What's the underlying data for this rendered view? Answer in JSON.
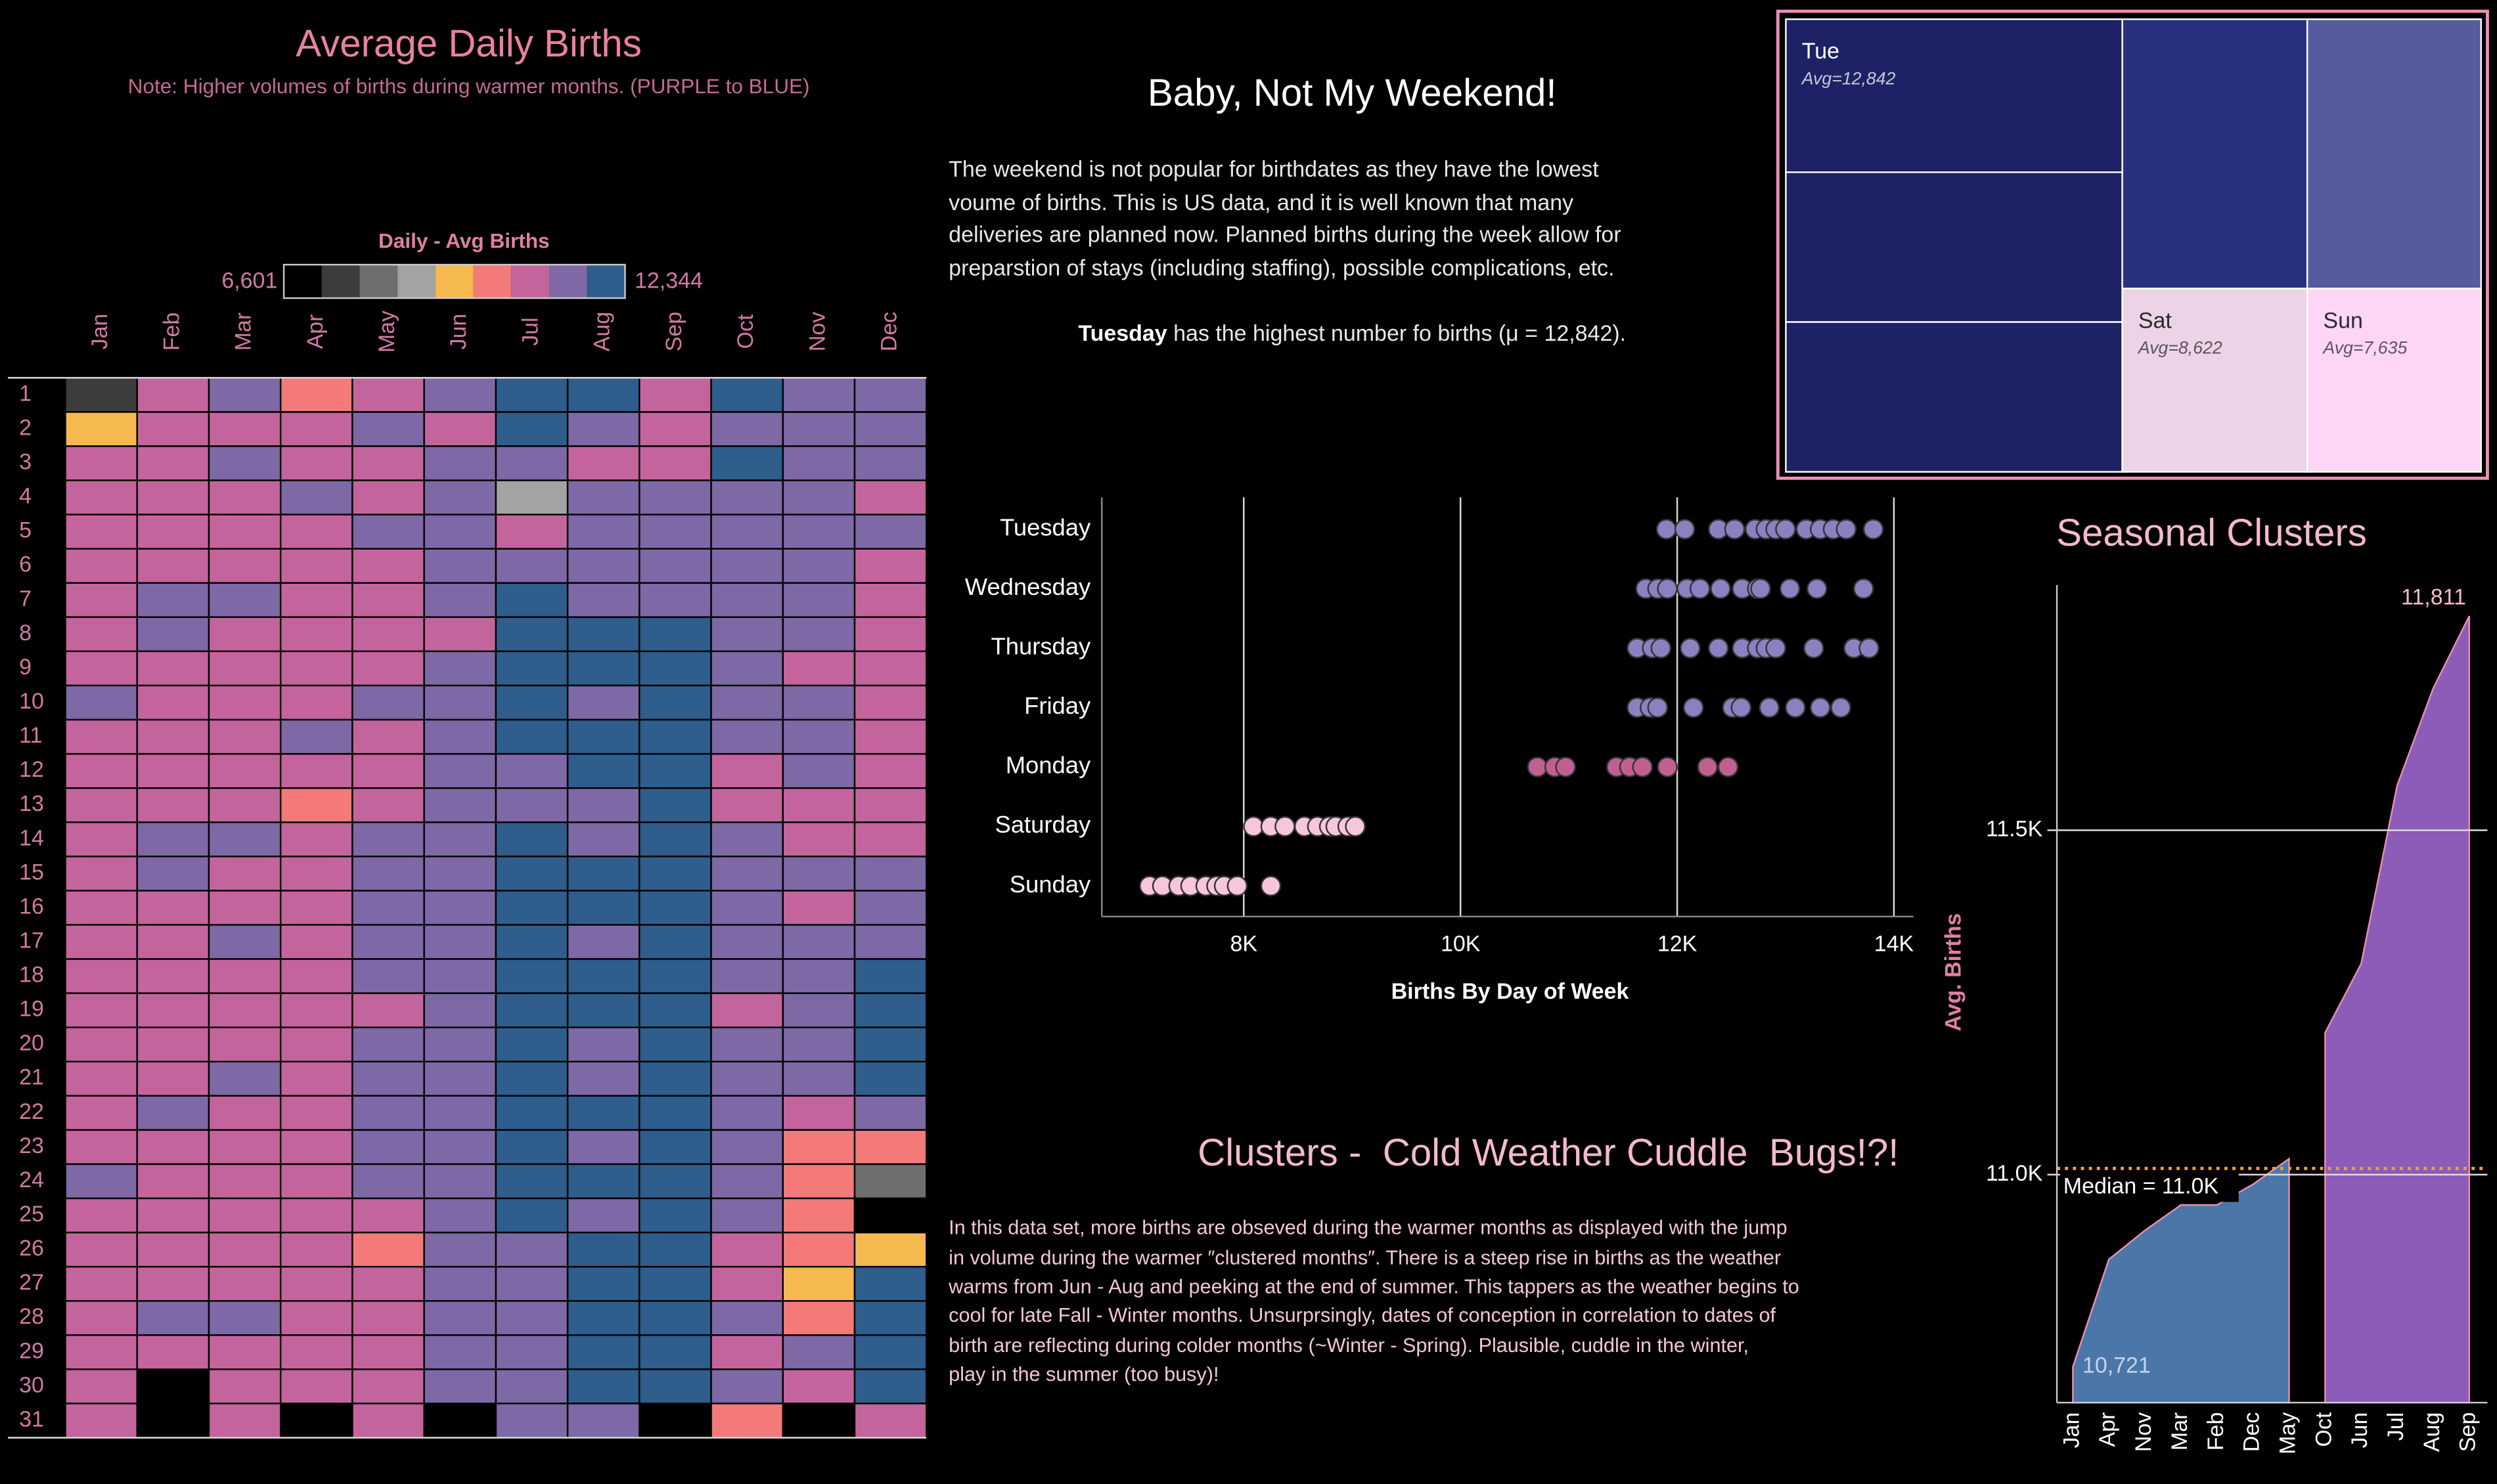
{
  "chart_data": [
    {
      "type": "heatmap",
      "title": "Average Daily Births",
      "subtitle": "Note: Higher volumes of births during warmer months. (PURPLE to BLUE)",
      "x": [
        "Jan",
        "Feb",
        "Mar",
        "Apr",
        "May",
        "Jun",
        "Jul",
        "Aug",
        "Sep",
        "Oct",
        "Nov",
        "Dec"
      ],
      "y": [
        "1",
        "2",
        "3",
        "4",
        "5",
        "6",
        "7",
        "8",
        "9",
        "10",
        "11",
        "12",
        "13",
        "14",
        "15",
        "16",
        "17",
        "18",
        "19",
        "20",
        "21",
        "22",
        "23",
        "24",
        "25",
        "26",
        "27",
        "28",
        "29",
        "30",
        "31"
      ],
      "color_scale": {
        "title": "Daily - Avg Births",
        "min": {
          "value": 6601,
          "label": "6,601"
        },
        "max": {
          "value": 12344,
          "label": "12,344"
        },
        "colors": [
          "#000000",
          "#3c3c3c",
          "#6e6e6e",
          "#a3a3a3",
          "#f6b94f",
          "#f47a7a",
          "#c4649c",
          "#7e68a6",
          "#2f5d8c"
        ]
      },
      "values": [
        [
          7500,
          10800,
          11400,
          10100,
          10800,
          11400,
          12100,
          12100,
          10800,
          12100,
          11400,
          11400
        ],
        [
          9500,
          10800,
          10800,
          10800,
          11400,
          10800,
          12100,
          11400,
          10800,
          11400,
          11400,
          11400
        ],
        [
          10800,
          10800,
          11400,
          10800,
          10800,
          11400,
          11400,
          10800,
          10800,
          12100,
          11400,
          11400
        ],
        [
          10800,
          10800,
          10800,
          11400,
          10800,
          11400,
          8800,
          11400,
          11400,
          11400,
          11400,
          10800
        ],
        [
          10800,
          10800,
          10800,
          10800,
          11400,
          11400,
          10800,
          11400,
          11400,
          11400,
          11400,
          11400
        ],
        [
          10800,
          10800,
          10800,
          10800,
          10800,
          11400,
          11400,
          11400,
          11400,
          11400,
          11400,
          10800
        ],
        [
          10800,
          11400,
          11400,
          10800,
          10800,
          11400,
          12100,
          11400,
          11400,
          11400,
          11400,
          10800
        ],
        [
          10800,
          11400,
          10800,
          10800,
          10800,
          10800,
          12100,
          12100,
          12100,
          11400,
          11400,
          10800
        ],
        [
          10800,
          10800,
          10800,
          10800,
          10800,
          11400,
          12100,
          12100,
          12100,
          11400,
          10800,
          10800
        ],
        [
          11400,
          10800,
          10800,
          10800,
          11400,
          11400,
          12100,
          11400,
          12100,
          11400,
          11400,
          10800
        ],
        [
          10800,
          10800,
          10800,
          11400,
          10800,
          11400,
          12100,
          12100,
          12100,
          11400,
          11400,
          10800
        ],
        [
          10800,
          10800,
          10800,
          10800,
          10800,
          11400,
          11400,
          12100,
          12100,
          10800,
          11400,
          10800
        ],
        [
          10800,
          10800,
          10800,
          10100,
          10800,
          11400,
          11400,
          11400,
          12100,
          10800,
          10800,
          10800
        ],
        [
          10800,
          11400,
          11400,
          10800,
          11400,
          11400,
          12100,
          11400,
          12100,
          11400,
          10800,
          10800
        ],
        [
          10800,
          11400,
          10800,
          10800,
          11400,
          11400,
          12100,
          12100,
          12100,
          11400,
          11400,
          11400
        ],
        [
          10800,
          10800,
          10800,
          10800,
          11400,
          11400,
          12100,
          12100,
          12100,
          11400,
          10800,
          11400
        ],
        [
          10800,
          10800,
          11400,
          10800,
          11400,
          11400,
          12100,
          11400,
          12100,
          11400,
          11400,
          11400
        ],
        [
          10800,
          10800,
          10800,
          10800,
          11400,
          11400,
          12100,
          12100,
          12100,
          11400,
          11400,
          12100
        ],
        [
          10800,
          10800,
          10800,
          10800,
          10800,
          11400,
          12100,
          12100,
          12100,
          10800,
          11400,
          12100
        ],
        [
          10800,
          10800,
          10800,
          10800,
          11400,
          11400,
          12100,
          11400,
          12100,
          11400,
          11400,
          12100
        ],
        [
          10800,
          10800,
          11400,
          10800,
          11400,
          11400,
          12100,
          11400,
          12100,
          11400,
          11400,
          12100
        ],
        [
          10800,
          11400,
          10800,
          10800,
          11400,
          11400,
          12100,
          12100,
          12100,
          11400,
          10800,
          11400
        ],
        [
          10800,
          10800,
          10800,
          10800,
          11400,
          11400,
          12100,
          11400,
          12100,
          11400,
          10100,
          10100
        ],
        [
          11400,
          10800,
          10800,
          10800,
          11400,
          11400,
          12100,
          12100,
          12100,
          11400,
          10100,
          8200
        ],
        [
          10800,
          10800,
          10800,
          10800,
          10800,
          11400,
          12100,
          11400,
          12100,
          11400,
          10100,
          6601
        ],
        [
          10800,
          10800,
          10800,
          10800,
          10100,
          11400,
          11400,
          12100,
          12100,
          10800,
          10100,
          9500
        ],
        [
          10800,
          10800,
          10800,
          10800,
          10800,
          11400,
          11400,
          12100,
          12100,
          10800,
          9500,
          12100
        ],
        [
          10800,
          11400,
          11400,
          10800,
          10800,
          11400,
          11400,
          12100,
          12100,
          11400,
          10100,
          12100
        ],
        [
          10800,
          10800,
          10800,
          10800,
          10800,
          11400,
          11400,
          12100,
          12100,
          10800,
          11400,
          12100
        ],
        [
          10800,
          null,
          10800,
          10800,
          10800,
          11400,
          11400,
          12100,
          12100,
          11400,
          10800,
          12100
        ],
        [
          10800,
          null,
          10800,
          null,
          10800,
          null,
          11400,
          11400,
          null,
          10100,
          null,
          10800
        ]
      ]
    },
    {
      "type": "strip",
      "xlabel": "Births By Day of Week",
      "xlim": [
        6690,
        14180
      ],
      "xticks": [
        {
          "value": 8000,
          "label": "8K"
        },
        {
          "value": 10000,
          "label": "10K"
        },
        {
          "value": 12000,
          "label": "12K"
        },
        {
          "value": 14000,
          "label": "14K"
        }
      ],
      "grid": true,
      "series": [
        {
          "name": "Tuesday",
          "color": "#8c80c0",
          "values": [
            11900,
            12070,
            12380,
            12530,
            12720,
            12820,
            12910,
            13000,
            13190,
            13320,
            13440,
            13560,
            13810
          ]
        },
        {
          "name": "Wednesday",
          "color": "#8c80c0",
          "values": [
            11710,
            11820,
            11910,
            12090,
            12210,
            12400,
            12600,
            12740,
            12770,
            13040,
            13290,
            13720
          ]
        },
        {
          "name": "Thursday",
          "color": "#8c80c0",
          "values": [
            11630,
            11770,
            11850,
            12120,
            12380,
            12600,
            12740,
            12820,
            12910,
            13260,
            13630,
            13770
          ]
        },
        {
          "name": "Friday",
          "color": "#8c80c0",
          "values": [
            11630,
            11750,
            11820,
            12150,
            12510,
            12590,
            12850,
            13090,
            13320,
            13510
          ]
        },
        {
          "name": "Monday",
          "color": "#c06090",
          "values": [
            10710,
            10870,
            10970,
            11440,
            11560,
            11680,
            11910,
            12280,
            12470
          ]
        },
        {
          "name": "Saturday",
          "color": "#f8c6dc",
          "values": [
            8090,
            8250,
            8380,
            8560,
            8680,
            8790,
            8850,
            8960,
            9030
          ]
        },
        {
          "name": "Sunday",
          "color": "#f8c6dc",
          "values": [
            7130,
            7250,
            7400,
            7510,
            7650,
            7750,
            7820,
            7940,
            8250
          ]
        }
      ]
    },
    {
      "type": "treemap",
      "categories": [
        "Tue",
        "Sat",
        "Sun"
      ],
      "values": [
        12842,
        8622,
        7635
      ],
      "value_labels": [
        "Avg=12,842",
        "Avg=8,622",
        "Avg=7,635"
      ],
      "colors": [
        "#1d2266",
        "#ecd3e8",
        "#fdd6f6"
      ],
      "text_colors": [
        "#ffffff",
        "#2a2a2a",
        "#2a2a2a"
      ]
    },
    {
      "type": "area",
      "title": "Seasonal Clusters",
      "ylabel": "Avg. Births",
      "categories": [
        "Jan",
        "Apr",
        "Nov",
        "Mar",
        "Feb",
        "Dec",
        "May",
        "Oct",
        "Jun",
        "Jul",
        "Aug",
        "Sep"
      ],
      "ylim": [
        10669,
        11856
      ],
      "yticks": [
        {
          "value": 11000,
          "label": "11.0K"
        },
        {
          "value": 11500,
          "label": "11.5K"
        }
      ],
      "grid": true,
      "reference": {
        "value": 11009,
        "label": "Median = 11.0K",
        "color": "#f0a030"
      },
      "series": [
        {
          "color": "#4a77a8",
          "values": [
            10721,
            10877,
            10919,
            10956,
            10956,
            10986,
            11023,
            null,
            null,
            null,
            null,
            null
          ],
          "value_labels": [
            "10,721",
            null,
            null,
            null,
            null,
            null,
            null,
            null,
            null,
            null,
            null,
            null
          ]
        },
        {
          "color": "#8c5cb8",
          "values": [
            null,
            null,
            null,
            null,
            null,
            null,
            null,
            11206,
            11306,
            11565,
            11706,
            11811
          ],
          "value_labels": [
            null,
            null,
            null,
            null,
            null,
            null,
            null,
            null,
            null,
            null,
            null,
            "11,811"
          ]
        }
      ]
    }
  ],
  "story": {
    "title": "Baby, Not My Weekend!",
    "lines": [
      "The weekend is not popular for birthdates as they have the lowest",
      "voume of births. This is US data, and it is well known that many",
      "deliveries are planned now. Planned births during the week allow for",
      "preparstion of stays (including staffing), possible complications, etc."
    ],
    "highlight": "Tuesday",
    "highlight_rest": " has the highest number fo births (μ = 12,842)."
  },
  "clusters_story": {
    "title": "Clusters -  Cold Weather Cuddle  Bugs!?!",
    "lines": [
      "In this data set, more births are obseved during the warmer months as displayed with the jump",
      "in volume during the warmer ″clustered months″. There is a steep rise in births as the weather",
      "warms from Jun - Aug and peeking at the end of summer. This tappers as the weather begins to",
      "cool for late Fall - Winter months. Unsurprsingly, dates of conception in correlation to dates of",
      "birth are reflecting during colder months (~Winter - Spring). Plausible, cuddle in the winter,",
      "play in the summer (too busy)!"
    ]
  }
}
